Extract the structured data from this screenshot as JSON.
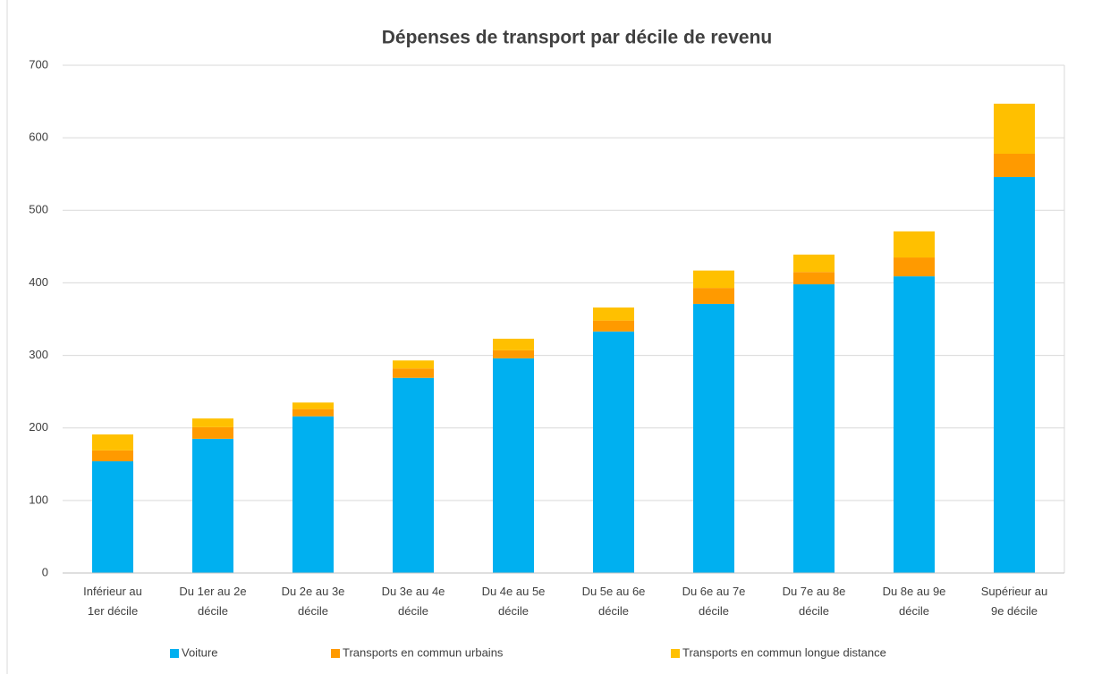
{
  "chart_data": {
    "type": "stacked_bar",
    "title": "Dépenses de transport par décile de revenu",
    "categories": [
      "Inférieur au\n1er décile",
      "Du 1er au 2e\ndécile",
      "Du 2e au 3e\ndécile",
      "Du 3e au 4e\ndécile",
      "Du 4e au 5e\ndécile",
      "Du 5e au 6e\ndécile",
      "Du 6e au 7e\ndécile",
      "Du 7e au 8e\ndécile",
      "Du 8e au 9e\ndécile",
      "Supérieur au\n9e décile"
    ],
    "series": [
      {
        "name": "Voiture",
        "color": "#00b0f0",
        "values": [
          154,
          185,
          216,
          269,
          296,
          333,
          371,
          398,
          409,
          546
        ]
      },
      {
        "name": "Transports en commun urbains",
        "color": "#ff9a00",
        "values": [
          15,
          16,
          10,
          13,
          11,
          15,
          22,
          17,
          26,
          32
        ]
      },
      {
        "name": "Transports en commun longue distance",
        "color": "#ffc000",
        "values": [
          22,
          12,
          9,
          11,
          16,
          18,
          24,
          24,
          36,
          69
        ]
      }
    ],
    "ylim": [
      0,
      700
    ],
    "yticks": [
      0,
      100,
      200,
      300,
      400,
      500,
      600,
      700
    ],
    "grid": true,
    "legend": "bottom"
  }
}
